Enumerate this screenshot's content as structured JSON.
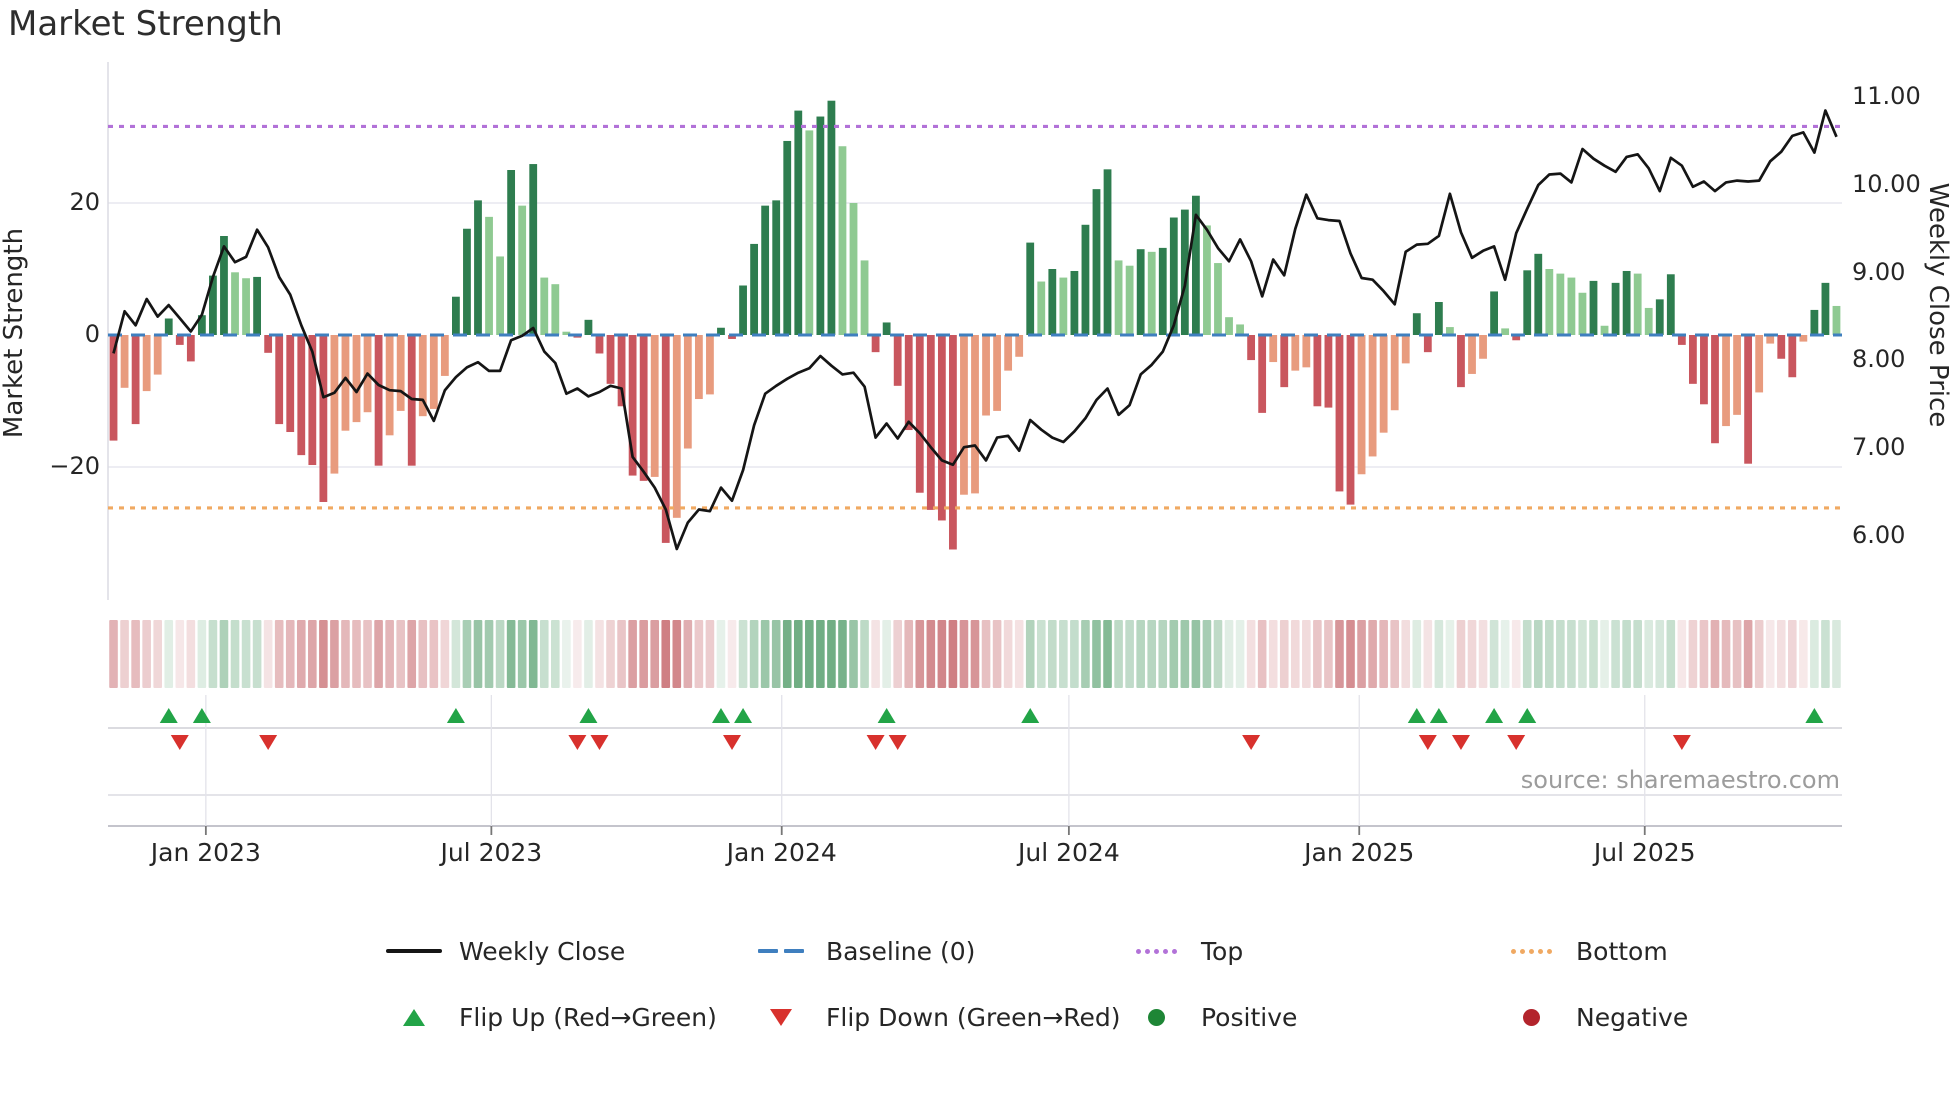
{
  "title": "Market Strength",
  "source": "source: sharemaestro.com",
  "axes": {
    "left_title": "Market Strength",
    "right_title": "Weekly Close Price"
  },
  "legend": {
    "row1": [
      {
        "label": "Weekly Close"
      },
      {
        "label": "Baseline (0)"
      },
      {
        "label": "Top"
      },
      {
        "label": "Bottom"
      }
    ],
    "row2": [
      {
        "label": "Flip Up (Red→Green)"
      },
      {
        "label": "Flip Down (Green→Red)"
      },
      {
        "label": "Positive"
      },
      {
        "label": "Negative"
      }
    ]
  },
  "chart_data": {
    "type": "combo",
    "title": "Market Strength",
    "frequency": "weekly",
    "start_date": "2022-10-31",
    "left_axis": {
      "label": "Market Strength",
      "ticks": [
        {
          "label": "20",
          "value": 20
        },
        {
          "label": "0",
          "value": 0
        },
        {
          "label": "−20",
          "value": -20
        }
      ],
      "ylim": [
        -41,
        41
      ]
    },
    "right_axis": {
      "label": "Weekly Close Price",
      "ticks": [
        {
          "label": "11.00",
          "value": 11
        },
        {
          "label": "10.00",
          "value": 10
        },
        {
          "label": "9.00",
          "value": 9
        },
        {
          "label": "8.00",
          "value": 8
        },
        {
          "label": "7.00",
          "value": 7
        },
        {
          "label": "6.00",
          "value": 6
        }
      ]
    },
    "x_axis": {
      "ticks": [
        {
          "label": "Jan 2023",
          "week": 8.86
        },
        {
          "label": "Jul 2023",
          "week": 34.71
        },
        {
          "label": "Jan 2024",
          "week": 61.0
        },
        {
          "label": "Jul 2024",
          "week": 87.0
        },
        {
          "label": "Jan 2025",
          "week": 113.29
        },
        {
          "label": "Jul 2025",
          "week": 139.14
        }
      ]
    },
    "guides": {
      "baseline": 0,
      "top": 31.6,
      "bottom": -26.2
    },
    "series": [
      {
        "name": "Market Strength",
        "type": "bar",
        "axis": "left",
        "values": [
          -16.0,
          -8.0,
          -13.5,
          -8.5,
          -6.0,
          2.5,
          -1.5,
          -4.0,
          3.0,
          9.0,
          15.0,
          9.5,
          8.6,
          8.8,
          -2.7,
          -13.5,
          -14.7,
          -18.2,
          -19.7,
          -25.3,
          -21.0,
          -14.5,
          -13.2,
          -11.7,
          -19.8,
          -15.2,
          -11.5,
          -19.8,
          -12.3,
          -11.2,
          -6.2,
          5.8,
          16.1,
          20.4,
          17.9,
          11.9,
          25.0,
          19.6,
          25.9,
          8.7,
          7.7,
          0.5,
          -0.4,
          2.3,
          -2.8,
          -7.4,
          -10.8,
          -21.3,
          -22.1,
          -21.5,
          -31.5,
          -27.7,
          -17.2,
          -9.7,
          -9.0,
          1.1,
          -0.6,
          7.5,
          13.8,
          19.6,
          20.4,
          29.4,
          34.0,
          31.0,
          33.1,
          35.5,
          28.6,
          20.0,
          11.3,
          -2.6,
          1.9,
          -7.7,
          -14.4,
          -23.9,
          -26.5,
          -28.1,
          -32.5,
          -24.2,
          -24.0,
          -12.2,
          -11.5,
          -5.4,
          -3.3,
          14.0,
          8.1,
          10.0,
          8.7,
          9.7,
          16.7,
          22.1,
          25.1,
          11.3,
          10.5,
          13.0,
          12.6,
          13.2,
          17.8,
          19.0,
          21.1,
          16.6,
          10.9,
          2.7,
          1.6,
          -3.8,
          -11.8,
          -4.1,
          -7.9,
          -5.4,
          -4.9,
          -10.8,
          -11.0,
          -23.7,
          -25.7,
          -21.1,
          -18.4,
          -14.8,
          -11.4,
          -4.3,
          3.3,
          -2.6,
          5.0,
          1.2,
          -7.9,
          -5.9,
          -3.6,
          6.6,
          1.0,
          -0.8,
          9.8,
          12.3,
          10.0,
          9.3,
          8.7,
          6.4,
          8.2,
          1.4,
          7.9,
          9.7,
          9.3,
          4.1,
          5.4,
          9.2,
          -1.5,
          -7.4,
          -10.5,
          -16.4,
          -13.8,
          -12.1,
          -19.5,
          -8.7,
          -1.3,
          -3.6,
          -6.4,
          -1.0,
          3.8,
          7.9,
          4.4
        ]
      },
      {
        "name": "Weekly Close",
        "type": "line",
        "axis": "right",
        "values": [
          8.08,
          8.56,
          8.4,
          8.7,
          8.5,
          8.63,
          8.48,
          8.33,
          8.52,
          8.95,
          9.3,
          9.12,
          9.18,
          9.49,
          9.29,
          8.95,
          8.75,
          8.4,
          8.1,
          7.58,
          7.63,
          7.8,
          7.64,
          7.85,
          7.72,
          7.66,
          7.65,
          7.56,
          7.55,
          7.31,
          7.66,
          7.81,
          7.92,
          7.98,
          7.88,
          7.88,
          8.23,
          8.28,
          8.37,
          8.1,
          7.97,
          7.62,
          7.68,
          7.59,
          7.64,
          7.71,
          7.68,
          6.9,
          6.73,
          6.55,
          6.3,
          5.85,
          6.15,
          6.3,
          6.28,
          6.55,
          6.4,
          6.75,
          7.26,
          7.62,
          7.71,
          7.79,
          7.86,
          7.91,
          8.05,
          7.94,
          7.84,
          7.86,
          7.7,
          7.12,
          7.28,
          7.11,
          7.3,
          7.17,
          7.01,
          6.86,
          6.81,
          7.01,
          7.03,
          6.86,
          7.12,
          7.14,
          6.97,
          7.32,
          7.21,
          7.12,
          7.07,
          7.19,
          7.34,
          7.55,
          7.68,
          7.38,
          7.49,
          7.84,
          7.95,
          8.1,
          8.4,
          8.85,
          9.66,
          9.49,
          9.28,
          9.13,
          9.38,
          9.13,
          8.73,
          9.15,
          8.97,
          9.5,
          9.89,
          9.62,
          9.6,
          9.59,
          9.22,
          8.94,
          8.92,
          8.79,
          8.64,
          9.24,
          9.32,
          9.33,
          9.42,
          9.9,
          9.46,
          9.17,
          9.25,
          9.3,
          8.92,
          9.45,
          9.73,
          10.0,
          10.12,
          10.13,
          10.03,
          10.41,
          10.3,
          10.22,
          10.15,
          10.32,
          10.35,
          10.19,
          9.93,
          10.31,
          10.22,
          9.98,
          10.04,
          9.93,
          10.03,
          10.05,
          10.04,
          10.05,
          10.27,
          10.38,
          10.56,
          10.6,
          10.37,
          10.85,
          10.55
        ]
      }
    ],
    "flip_up_weeks": [
      5,
      8,
      31,
      43,
      55,
      57,
      70,
      83,
      118,
      120,
      125,
      128,
      154
    ],
    "flip_down_weeks": [
      6,
      14,
      42,
      44,
      56,
      69,
      71,
      103,
      119,
      122,
      127,
      142
    ],
    "heatmap_strip": "same weekly strength values rendered as color intensity stripes",
    "colors": {
      "bar_positive_strong": "#2e7d4f",
      "bar_positive_weak": "#8fca92",
      "bar_negative_strong": "#c9565e",
      "bar_negative_weak": "#e89b7e",
      "price_line": "#151515",
      "baseline": "#3f7fbf",
      "top_line": "#b272d8",
      "bottom_line": "#f0a962",
      "flip_up": "#22a447",
      "flip_down": "#d8312d",
      "positive_dot": "#1e8636",
      "negative_dot": "#b3242c"
    },
    "legend_position": "bottom",
    "grid": "horizontal at +20 / -20, vertical in lower panels"
  }
}
